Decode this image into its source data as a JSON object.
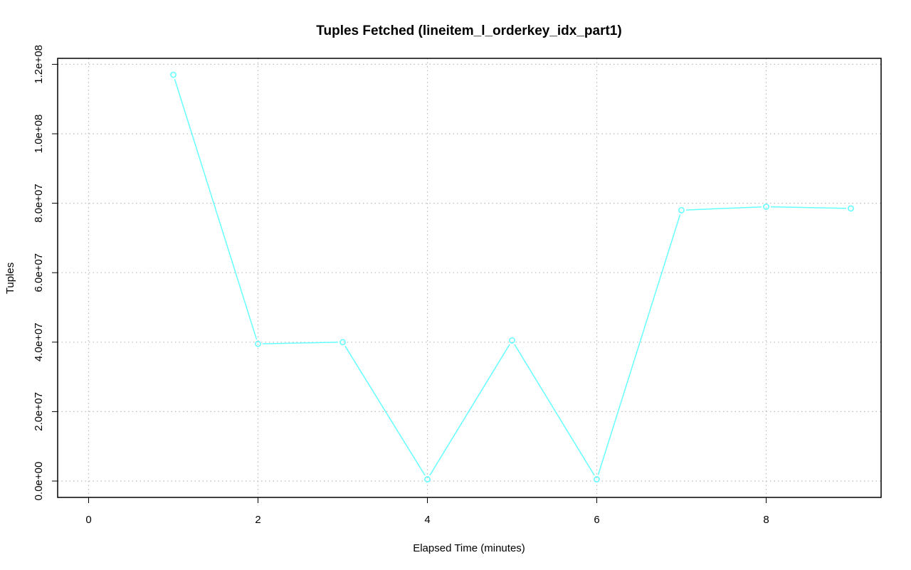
{
  "chart_data": {
    "type": "line",
    "title": "Tuples Fetched (lineitem_l_orderkey_idx_part1)",
    "xlabel": "Elapsed Time (minutes)",
    "ylabel": "Tuples",
    "x_ticks": [
      "0",
      "2",
      "4",
      "6",
      "8"
    ],
    "y_ticks": [
      "0.0e+00",
      "2.0e+07",
      "4.0e+07",
      "6.0e+07",
      "8.0e+07",
      "1.0e+08",
      "1.2e+08"
    ],
    "xlim": [
      0,
      9
    ],
    "ylim": [
      0,
      120000000
    ],
    "grid": true,
    "series": [
      {
        "color": "#66ffff",
        "marker": "circle",
        "x": [
          1,
          2,
          3,
          4,
          5,
          6,
          7,
          8,
          9
        ],
        "y": [
          117000000,
          39500000,
          40000000,
          500000,
          40500000,
          500000,
          78000000,
          79000000,
          78500000
        ]
      }
    ]
  }
}
